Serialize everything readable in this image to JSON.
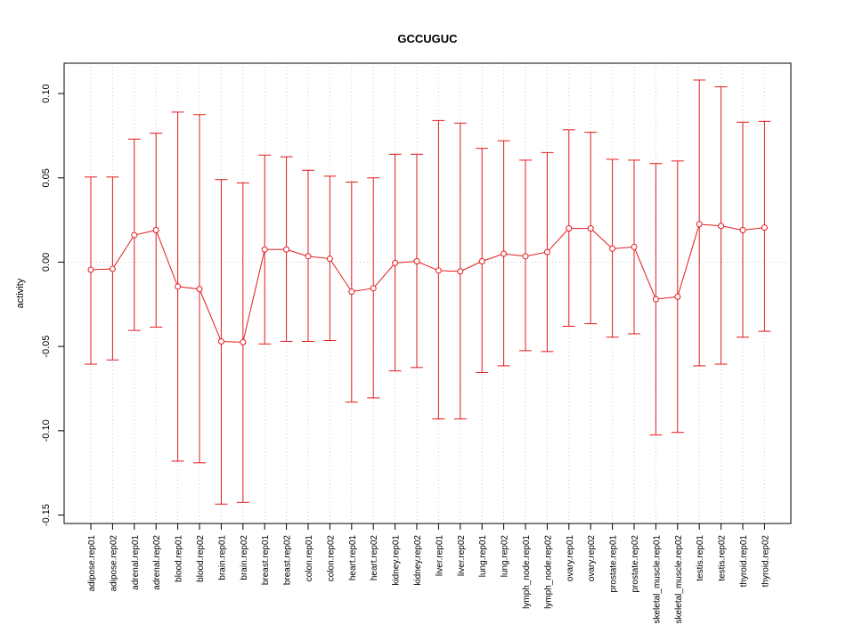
{
  "chart_data": {
    "type": "line",
    "title": "GCCUGUC",
    "xlabel": "",
    "ylabel": "activity",
    "ylim": [
      -0.155,
      0.118
    ],
    "yticks": [
      -0.15,
      -0.1,
      -0.05,
      0.0,
      0.05,
      0.1
    ],
    "ytick_labels": [
      "-0.15",
      "-0.10",
      "-0.05",
      "0.00",
      "0.05",
      "0.10"
    ],
    "grid": true,
    "line_color": "#e41a1c",
    "grid_color": "#cccccc",
    "categories": [
      "adipose.rep01",
      "adipose.rep02",
      "adrenal.rep01",
      "adrenal.rep02",
      "blood.rep01",
      "blood.rep02",
      "brain.rep01",
      "brain.rep02",
      "breast.rep01",
      "breast.rep02",
      "colon.rep01",
      "colon.rep02",
      "heart.rep01",
      "heart.rep02",
      "kidney.rep01",
      "kidney.rep02",
      "liver.rep01",
      "liver.rep02",
      "lung.rep01",
      "lung.rep02",
      "lymph_node.rep01",
      "lymph_node.rep02",
      "ovary.rep01",
      "ovary.rep02",
      "prostate.rep01",
      "prostate.rep02",
      "skeletal_muscle.rep01",
      "skeletal_muscle.rep02",
      "testis.rep01",
      "testis.rep02",
      "thyroid.rep01",
      "thyroid.rep02"
    ],
    "values": [
      -0.0045,
      -0.004,
      0.016,
      0.019,
      -0.0145,
      -0.016,
      -0.047,
      -0.0475,
      0.0075,
      0.0075,
      0.0035,
      0.002,
      -0.0175,
      -0.0155,
      -0.0005,
      0.0005,
      -0.005,
      -0.0055,
      0.0005,
      0.005,
      0.0035,
      0.006,
      0.02,
      0.02,
      0.008,
      0.009,
      -0.022,
      -0.0205,
      0.0225,
      0.0215,
      0.019,
      0.0205
    ],
    "upper": [
      0.0505,
      0.0505,
      0.073,
      0.0765,
      0.089,
      0.0875,
      0.049,
      0.047,
      0.0635,
      0.0625,
      0.0545,
      0.051,
      0.0475,
      0.05,
      0.064,
      0.064,
      0.084,
      0.0825,
      0.0675,
      0.072,
      0.0605,
      0.065,
      0.0785,
      0.077,
      0.061,
      0.0605,
      0.0585,
      0.06,
      0.108,
      0.104,
      0.083,
      0.0835
    ],
    "lower": [
      -0.0605,
      -0.058,
      -0.0405,
      -0.0385,
      -0.118,
      -0.119,
      -0.1435,
      -0.1425,
      -0.0485,
      -0.047,
      -0.047,
      -0.0465,
      -0.083,
      -0.0805,
      -0.0645,
      -0.0625,
      -0.093,
      -0.093,
      -0.0655,
      -0.0615,
      -0.0525,
      -0.053,
      -0.038,
      -0.0365,
      -0.0445,
      -0.0425,
      -0.1025,
      -0.101,
      -0.0615,
      -0.0605,
      -0.0445,
      -0.041
    ]
  }
}
